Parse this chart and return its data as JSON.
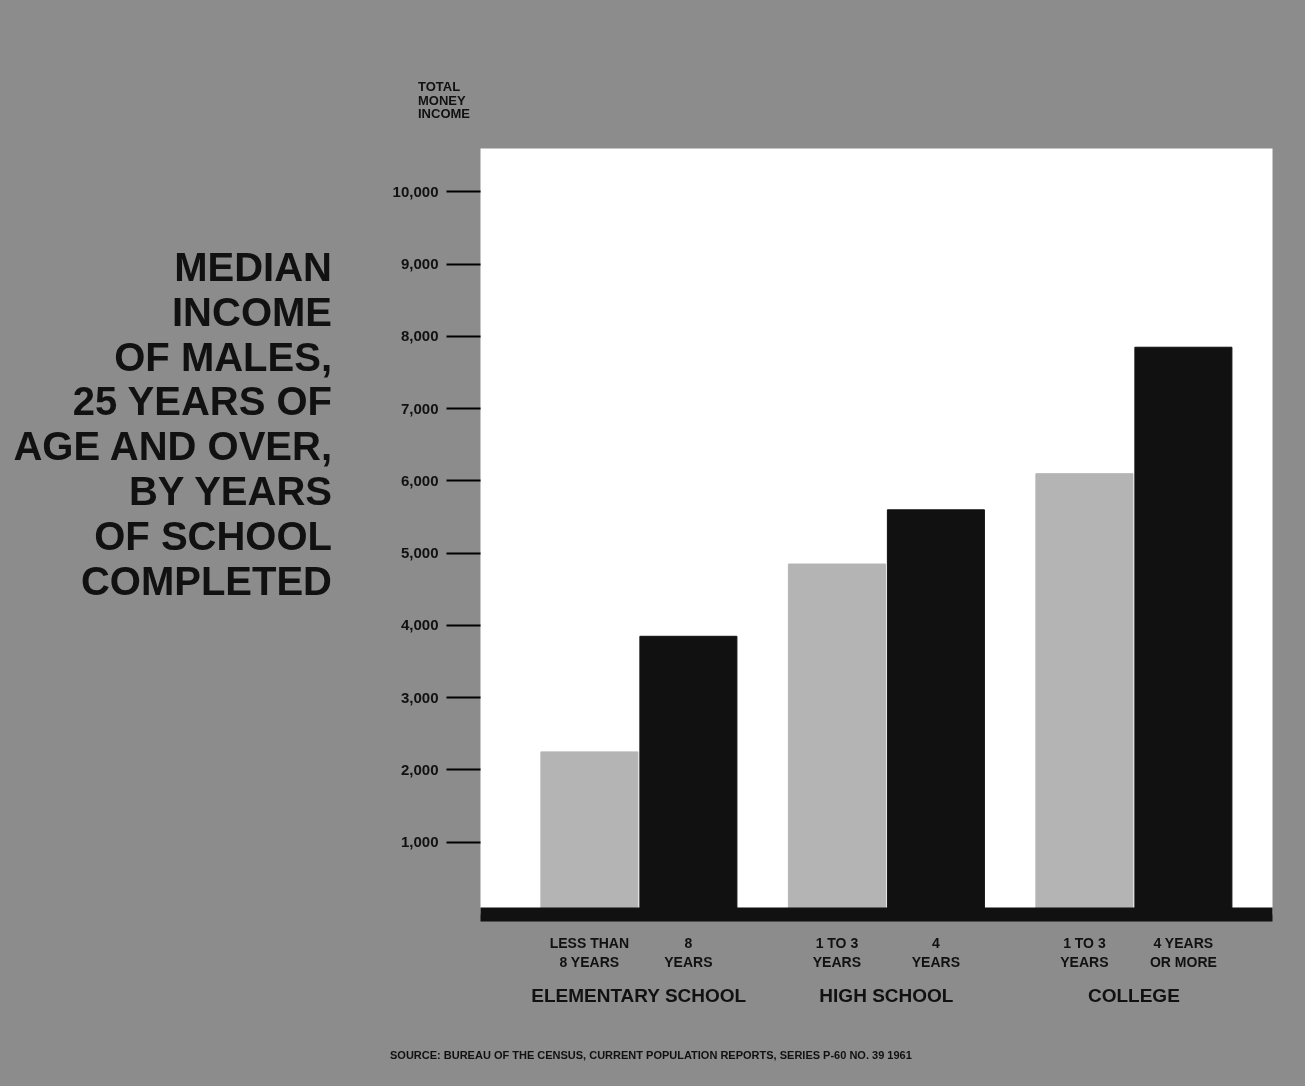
{
  "chart_data": {
    "type": "bar",
    "title": "MEDIAN\nINCOME\nOF MALES,\n25 YEARS OF\nAGE AND OVER,\nBY YEARS\nOF SCHOOL\nCOMPLETED",
    "ylabel": "TOTAL\nMONEY\nINCOME",
    "categories": [
      "LESS THAN\n8 YEARS",
      "8\nYEARS",
      "1 TO 3\nYEARS",
      "4\nYEARS",
      "1 TO 3\nYEARS",
      "4 YEARS\nOR MORE"
    ],
    "values": [
      2250,
      3850,
      4850,
      5600,
      6100,
      7850
    ],
    "colors": [
      "#b4b4b4",
      "#111111",
      "#b4b4b4",
      "#111111",
      "#b4b4b4",
      "#111111"
    ],
    "ylim": [
      0,
      10600
    ],
    "yticks": [
      {
        "value": 1000,
        "label": "1,000"
      },
      {
        "value": 2000,
        "label": "2,000"
      },
      {
        "value": 3000,
        "label": "3,000"
      },
      {
        "value": 4000,
        "label": "4,000"
      },
      {
        "value": 5000,
        "label": "5,000"
      },
      {
        "value": 6000,
        "label": "6,000"
      },
      {
        "value": 7000,
        "label": "7,000"
      },
      {
        "value": 8000,
        "label": "8,000"
      },
      {
        "value": 9000,
        "label": "9,000"
      },
      {
        "value": 10000,
        "label": "10,000"
      }
    ],
    "annotations": [
      "ELEMENTARY SCHOOL",
      "HIGH SCHOOL",
      "COLLEGE",
      "SOURCE: BUREAU OF THE CENSUS, CURRENT POPULATION REPORTS, SERIES P-60 NO. 39  1961"
    ],
    "grid": false
  }
}
